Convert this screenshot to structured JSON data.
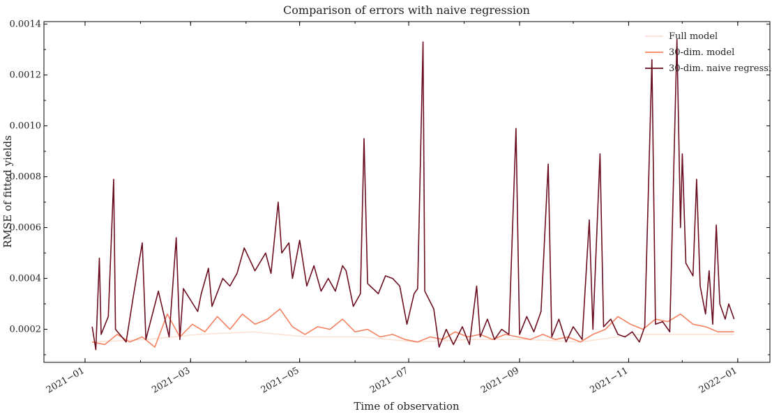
{
  "chart_data": {
    "type": "line",
    "title": "Comparison of errors with naive regression",
    "xlabel": "Time of observation",
    "ylabel": "RMSE of fitted yields",
    "xlim": [
      "2020-12-09",
      "2022-01-19"
    ],
    "ylim": [
      7e-05,
      0.00141
    ],
    "xticks": [
      "2021-01-01",
      "2021-03-01",
      "2021-05-01",
      "2021-07-01",
      "2021-09-01",
      "2021-11-01",
      "2022-01-01"
    ],
    "xtick_labels": [
      "2021−01",
      "2021−03",
      "2021−05",
      "2021−07",
      "2021−09",
      "2021−11",
      "2022−01"
    ],
    "yticks": [
      0.0002,
      0.0004,
      0.0006,
      0.0008,
      0.001,
      0.0012,
      0.0014
    ],
    "ytick_labels": [
      "0.0002",
      "0.0004",
      "0.0006",
      "0.0008",
      "0.0010",
      "0.0012",
      "0.0014"
    ],
    "legend_position": "top-right",
    "series": [
      {
        "name": "Full model",
        "color": "#fbe3d6",
        "points": [
          [
            "2021-01-05",
            0.00015
          ],
          [
            "2021-02-05",
            0.00016
          ],
          [
            "2021-03-05",
            0.00018
          ],
          [
            "2021-04-05",
            0.00019
          ],
          [
            "2021-05-05",
            0.00017
          ],
          [
            "2021-06-05",
            0.00017
          ],
          [
            "2021-07-05",
            0.00015
          ],
          [
            "2021-08-05",
            0.00016
          ],
          [
            "2021-09-05",
            0.00016
          ],
          [
            "2021-10-05",
            0.00015
          ],
          [
            "2021-11-05",
            0.00018
          ],
          [
            "2021-12-05",
            0.00018
          ],
          [
            "2021-12-30",
            0.00018
          ]
        ]
      },
      {
        "name": "30-dim. model",
        "color": "#f4805e",
        "points": [
          [
            "2021-01-05",
            0.00015
          ],
          [
            "2021-01-12",
            0.00014
          ],
          [
            "2021-01-19",
            0.00018
          ],
          [
            "2021-01-26",
            0.00015
          ],
          [
            "2021-02-02",
            0.00017
          ],
          [
            "2021-02-09",
            0.00013
          ],
          [
            "2021-02-16",
            0.00026
          ],
          [
            "2021-02-23",
            0.00017
          ],
          [
            "2021-03-02",
            0.00022
          ],
          [
            "2021-03-09",
            0.00019
          ],
          [
            "2021-03-16",
            0.00025
          ],
          [
            "2021-03-23",
            0.0002
          ],
          [
            "2021-03-30",
            0.00026
          ],
          [
            "2021-04-06",
            0.00022
          ],
          [
            "2021-04-13",
            0.00024
          ],
          [
            "2021-04-20",
            0.00028
          ],
          [
            "2021-04-27",
            0.00021
          ],
          [
            "2021-05-04",
            0.00018
          ],
          [
            "2021-05-11",
            0.00021
          ],
          [
            "2021-05-18",
            0.0002
          ],
          [
            "2021-05-25",
            0.00024
          ],
          [
            "2021-06-01",
            0.00019
          ],
          [
            "2021-06-08",
            0.0002
          ],
          [
            "2021-06-15",
            0.00017
          ],
          [
            "2021-06-22",
            0.00018
          ],
          [
            "2021-06-29",
            0.00016
          ],
          [
            "2021-07-06",
            0.00015
          ],
          [
            "2021-07-13",
            0.00017
          ],
          [
            "2021-07-20",
            0.00016
          ],
          [
            "2021-07-27",
            0.00019
          ],
          [
            "2021-08-03",
            0.00017
          ],
          [
            "2021-08-10",
            0.00018
          ],
          [
            "2021-08-17",
            0.00016
          ],
          [
            "2021-08-24",
            0.00018
          ],
          [
            "2021-08-31",
            0.00017
          ],
          [
            "2021-09-07",
            0.00016
          ],
          [
            "2021-09-14",
            0.00018
          ],
          [
            "2021-09-21",
            0.00016
          ],
          [
            "2021-09-28",
            0.00017
          ],
          [
            "2021-10-05",
            0.00015
          ],
          [
            "2021-10-12",
            0.00018
          ],
          [
            "2021-10-19",
            0.0002
          ],
          [
            "2021-10-26",
            0.00025
          ],
          [
            "2021-11-02",
            0.00022
          ],
          [
            "2021-11-09",
            0.0002
          ],
          [
            "2021-11-16",
            0.00024
          ],
          [
            "2021-11-23",
            0.00023
          ],
          [
            "2021-11-30",
            0.00026
          ],
          [
            "2021-12-07",
            0.00022
          ],
          [
            "2021-12-14",
            0.00021
          ],
          [
            "2021-12-21",
            0.00019
          ],
          [
            "2021-12-30",
            0.00019
          ]
        ]
      },
      {
        "name": "30-dim. naive regression",
        "color": "#6b0e1f",
        "points": [
          [
            "2021-01-05",
            0.00021
          ],
          [
            "2021-01-07",
            0.00012
          ],
          [
            "2021-01-09",
            0.00048
          ],
          [
            "2021-01-10",
            0.00018
          ],
          [
            "2021-01-14",
            0.00025
          ],
          [
            "2021-01-17",
            0.00079
          ],
          [
            "2021-01-18",
            0.0002
          ],
          [
            "2021-01-24",
            0.00015
          ],
          [
            "2021-01-28",
            0.00033
          ],
          [
            "2021-02-02",
            0.00054
          ],
          [
            "2021-02-04",
            0.00016
          ],
          [
            "2021-02-11",
            0.00035
          ],
          [
            "2021-02-17",
            0.00017
          ],
          [
            "2021-02-21",
            0.00056
          ],
          [
            "2021-02-23",
            0.00016
          ],
          [
            "2021-02-25",
            0.00036
          ],
          [
            "2021-03-05",
            0.00027
          ],
          [
            "2021-03-07",
            0.00034
          ],
          [
            "2021-03-11",
            0.00044
          ],
          [
            "2021-03-13",
            0.00029
          ],
          [
            "2021-03-19",
            0.0004
          ],
          [
            "2021-03-23",
            0.00037
          ],
          [
            "2021-03-27",
            0.00042
          ],
          [
            "2021-03-31",
            0.00052
          ],
          [
            "2021-04-06",
            0.00043
          ],
          [
            "2021-04-12",
            0.0005
          ],
          [
            "2021-04-15",
            0.00042
          ],
          [
            "2021-04-19",
            0.0007
          ],
          [
            "2021-04-21",
            0.0005
          ],
          [
            "2021-04-25",
            0.00054
          ],
          [
            "2021-04-27",
            0.0004
          ],
          [
            "2021-05-01",
            0.00055
          ],
          [
            "2021-05-05",
            0.00037
          ],
          [
            "2021-05-09",
            0.00045
          ],
          [
            "2021-05-13",
            0.00035
          ],
          [
            "2021-05-17",
            0.0004
          ],
          [
            "2021-05-21",
            0.00035
          ],
          [
            "2021-05-25",
            0.00045
          ],
          [
            "2021-05-27",
            0.00043
          ],
          [
            "2021-05-31",
            0.00029
          ],
          [
            "2021-06-04",
            0.00034
          ],
          [
            "2021-06-06",
            0.00095
          ],
          [
            "2021-06-08",
            0.00038
          ],
          [
            "2021-06-14",
            0.00034
          ],
          [
            "2021-06-18",
            0.00041
          ],
          [
            "2021-06-22",
            0.0004
          ],
          [
            "2021-06-26",
            0.00037
          ],
          [
            "2021-06-30",
            0.00022
          ],
          [
            "2021-07-04",
            0.00034
          ],
          [
            "2021-07-06",
            0.00036
          ],
          [
            "2021-07-09",
            0.00133
          ],
          [
            "2021-07-10",
            0.00035
          ],
          [
            "2021-07-15",
            0.00028
          ],
          [
            "2021-07-18",
            0.00013
          ],
          [
            "2021-07-22",
            0.0002
          ],
          [
            "2021-07-26",
            0.00014
          ],
          [
            "2021-07-31",
            0.00021
          ],
          [
            "2021-08-04",
            0.00014
          ],
          [
            "2021-08-08",
            0.00037
          ],
          [
            "2021-08-10",
            0.00017
          ],
          [
            "2021-08-14",
            0.00024
          ],
          [
            "2021-08-18",
            0.00016
          ],
          [
            "2021-08-22",
            0.0002
          ],
          [
            "2021-08-26",
            0.00018
          ],
          [
            "2021-08-30",
            0.00099
          ],
          [
            "2021-09-01",
            0.00018
          ],
          [
            "2021-09-05",
            0.00025
          ],
          [
            "2021-09-09",
            0.00019
          ],
          [
            "2021-09-13",
            0.00027
          ],
          [
            "2021-09-17",
            0.00085
          ],
          [
            "2021-09-19",
            0.00017
          ],
          [
            "2021-09-23",
            0.00024
          ],
          [
            "2021-09-27",
            0.00015
          ],
          [
            "2021-10-01",
            0.00021
          ],
          [
            "2021-10-06",
            0.00016
          ],
          [
            "2021-10-10",
            0.00063
          ],
          [
            "2021-10-12",
            0.0002
          ],
          [
            "2021-10-16",
            0.00089
          ],
          [
            "2021-10-18",
            0.00021
          ],
          [
            "2021-10-22",
            0.00024
          ],
          [
            "2021-10-26",
            0.00018
          ],
          [
            "2021-10-30",
            0.00017
          ],
          [
            "2021-11-03",
            0.00019
          ],
          [
            "2021-11-07",
            0.00015
          ],
          [
            "2021-11-10",
            0.00021
          ],
          [
            "2021-11-14",
            0.00126
          ],
          [
            "2021-11-16",
            0.00022
          ],
          [
            "2021-11-20",
            0.00023
          ],
          [
            "2021-11-24",
            0.00019
          ],
          [
            "2021-11-28",
            0.00134
          ],
          [
            "2021-11-30",
            0.0006
          ],
          [
            "2021-12-01",
            0.00089
          ],
          [
            "2021-12-03",
            0.00046
          ],
          [
            "2021-12-07",
            0.00041
          ],
          [
            "2021-12-09",
            0.00079
          ],
          [
            "2021-12-11",
            0.00037
          ],
          [
            "2021-12-14",
            0.00026
          ],
          [
            "2021-12-16",
            0.00043
          ],
          [
            "2021-12-18",
            0.00022
          ],
          [
            "2021-12-20",
            0.00061
          ],
          [
            "2021-12-22",
            0.0003
          ],
          [
            "2021-12-25",
            0.00024
          ],
          [
            "2021-12-27",
            0.0003
          ],
          [
            "2021-12-30",
            0.00024
          ]
        ]
      }
    ]
  }
}
